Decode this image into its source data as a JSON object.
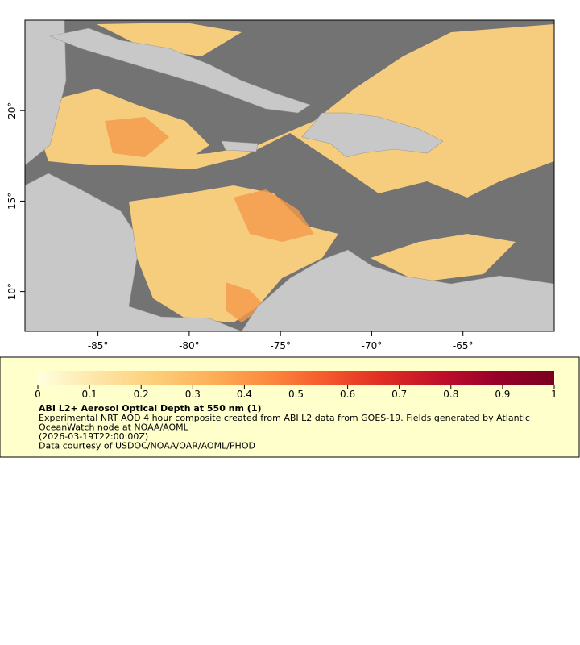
{
  "map": {
    "xlim": [
      -89,
      -60
    ],
    "ylim": [
      7.8,
      25
    ],
    "xticks": [
      {
        "value": -85,
        "label": "-85°"
      },
      {
        "value": -80,
        "label": "-80°"
      },
      {
        "value": -75,
        "label": "-75°"
      },
      {
        "value": -70,
        "label": "-70°"
      },
      {
        "value": -65,
        "label": "-65°"
      }
    ],
    "yticks": [
      {
        "value": 10,
        "label": "10°"
      },
      {
        "value": 15,
        "label": "15°"
      },
      {
        "value": 20,
        "label": "20°"
      }
    ]
  },
  "colorbar": {
    "lim": [
      0,
      1
    ],
    "ticks": [
      0,
      0.1,
      0.2,
      0.3,
      0.4,
      0.5,
      0.6,
      0.7,
      0.8,
      0.9,
      1
    ],
    "colors": [
      "#ffffe0",
      "#fee6a8",
      "#fdcf7a",
      "#fdb05a",
      "#fc8a3f",
      "#f55a2c",
      "#e02d22",
      "#c0102a",
      "#98002a",
      "#7a0020"
    ]
  },
  "legend": {
    "title": "ABI L2+ Aerosol Optical Depth at 550 nm (1)",
    "lines": [
      "Experimental NRT AOD 4 hour composite created from ABI L2 data from GOES-19. Fields generated by Atlantic",
      "OceanWatch node at NOAA/AOML",
      "(2026-03-19T22:00:00Z)",
      "Data courtesy of USDOC/NOAA/OAR/AOML/PHOD"
    ]
  }
}
